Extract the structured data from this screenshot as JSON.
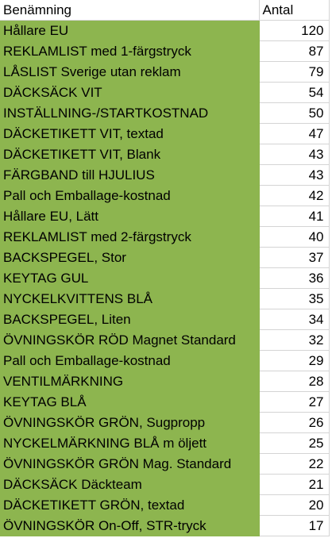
{
  "headers": {
    "name": "Benämning",
    "qty": "Antal"
  },
  "colors": {
    "name_fill": "#8db54f",
    "grid": "#d4d4d4"
  },
  "rows": [
    {
      "name": "Hållare EU",
      "qty": "120"
    },
    {
      "name": "REKLAMLIST med 1-färgstryck",
      "qty": "87"
    },
    {
      "name": "LÅSLIST Sverige utan reklam",
      "qty": "79"
    },
    {
      "name": "DÄCKSÄCK VIT",
      "qty": "54"
    },
    {
      "name": "INSTÄLLNING-/STARTKOSTNAD",
      "qty": "50"
    },
    {
      "name": "DÄCKETIKETT VIT, textad",
      "qty": "47"
    },
    {
      "name": "DÄCKETIKETT VIT, Blank",
      "qty": "43"
    },
    {
      "name": "FÄRGBAND till HJULIUS",
      "qty": "43"
    },
    {
      "name": "Pall och Emballage-kostnad",
      "qty": "42"
    },
    {
      "name": "Hållare EU, Lätt",
      "qty": "41"
    },
    {
      "name": "REKLAMLIST med 2-färgstryck",
      "qty": "40"
    },
    {
      "name": "BACKSPEGEL, Stor",
      "qty": "37"
    },
    {
      "name": "KEYTAG GUL",
      "qty": "36"
    },
    {
      "name": "NYCKELKVITTENS BLÅ",
      "qty": "35"
    },
    {
      "name": "BACKSPEGEL, Liten",
      "qty": "34"
    },
    {
      "name": "ÖVNINGSKÖR RÖD Magnet Standard",
      "qty": "32"
    },
    {
      "name": "Pall och Emballage-kostnad",
      "qty": "29"
    },
    {
      "name": "VENTILMÄRKNING",
      "qty": "28"
    },
    {
      "name": "KEYTAG BLÅ",
      "qty": "27"
    },
    {
      "name": "ÖVNINGSKÖR GRÖN, Sugpropp",
      "qty": "26"
    },
    {
      "name": "NYCKELMÄRKNING BLÅ m öljett",
      "qty": "25"
    },
    {
      "name": "ÖVNINGSKÖR GRÖN Mag. Standard",
      "qty": "22"
    },
    {
      "name": "DÄCKSÄCK Däckteam",
      "qty": "21"
    },
    {
      "name": "DÄCKETIKETT GRÖN, textad",
      "qty": "20"
    },
    {
      "name": "ÖVNINGSKÖR On-Off, STR-tryck",
      "qty": "17"
    }
  ]
}
